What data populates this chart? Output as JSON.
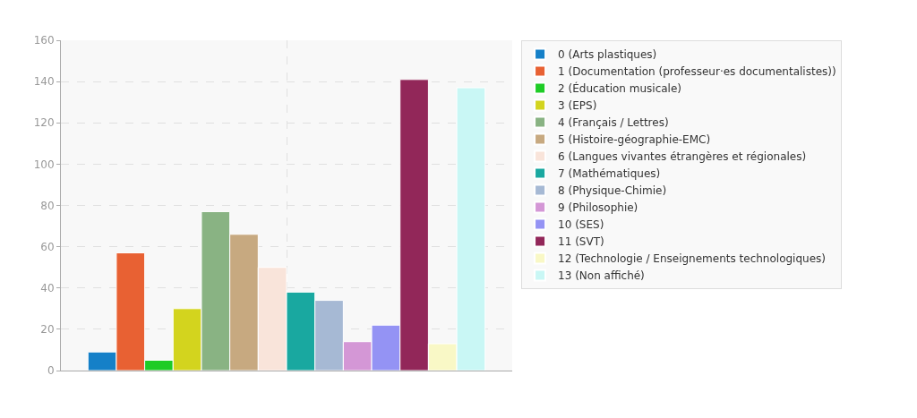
{
  "chart_data": {
    "type": "bar",
    "categories": [
      null
    ],
    "series": [
      {
        "name": "0 (Arts plastiques)",
        "color": "#1580c8",
        "values": [
          9
        ]
      },
      {
        "name": "1 (Documentation (professeur·es documentalistes))",
        "color": "#e86133",
        "values": [
          57
        ]
      },
      {
        "name": "2 (Éducation musicale)",
        "color": "#1ecc26",
        "values": [
          5
        ]
      },
      {
        "name": "3 (EPS)",
        "color": "#d3d41e",
        "values": [
          30
        ]
      },
      {
        "name": "4 (Français / Lettres)",
        "color": "#89b383",
        "values": [
          77
        ]
      },
      {
        "name": "5 (Histoire-géographie-EMC)",
        "color": "#c7a980",
        "values": [
          66
        ]
      },
      {
        "name": "6 (Langues vivantes étrangères et régionales)",
        "color": "#f9e4da",
        "values": [
          50
        ]
      },
      {
        "name": "7 (Mathématiques)",
        "color": "#19a8a0",
        "values": [
          38
        ]
      },
      {
        "name": "8 (Physique-Chimie)",
        "color": "#a6b9d4",
        "values": [
          34
        ]
      },
      {
        "name": "9 (Philosophie)",
        "color": "#d497d6",
        "values": [
          14
        ]
      },
      {
        "name": "10 (SES)",
        "color": "#9493f4",
        "values": [
          22
        ]
      },
      {
        "name": "11 (SVT)",
        "color": "#922759",
        "values": [
          141
        ]
      },
      {
        "name": "12 (Technologie / Enseignements technologiques)",
        "color": "#f9f8c6",
        "values": [
          13
        ]
      },
      {
        "name": "13 (Non affiché)",
        "color": "#c9f7f5",
        "values": [
          137
        ]
      }
    ],
    "ylim": [
      0,
      160
    ],
    "yticks": [
      0,
      20,
      40,
      60,
      80,
      100,
      120,
      140,
      160
    ],
    "grid": true,
    "legend": "right"
  }
}
